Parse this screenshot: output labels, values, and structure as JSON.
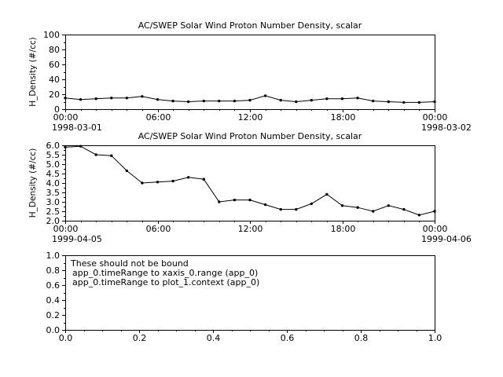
{
  "app": {
    "background": "#ffffff",
    "foreground": "#000000"
  },
  "chart_data": [
    {
      "type": "line",
      "title": "AC/SWEP  Solar Wind Proton Number Density, scalar",
      "ylabel": "H_Density (#/cc)",
      "xlabel": "",
      "ylim": [
        0,
        100
      ],
      "yticks": [
        0,
        20,
        40,
        60,
        80,
        100
      ],
      "ytick_labels": [
        "0",
        "20",
        "40",
        "60",
        "80",
        "100"
      ],
      "yminor_step": 10,
      "xlim": [
        0,
        24
      ],
      "xticks": [
        0,
        6,
        12,
        18,
        24
      ],
      "xtick_labels": [
        "00:00",
        "06:00",
        "12:00",
        "18:00",
        "00:00"
      ],
      "xminor_step": 1,
      "x_start_date": "1998-03-01",
      "x_end_date": "1998-03-02",
      "grid": false,
      "legend": "none",
      "x": [
        0,
        1,
        2,
        3,
        4,
        5,
        6,
        7,
        8,
        9,
        10,
        11,
        12,
        13,
        14,
        15,
        16,
        17,
        18,
        19,
        20,
        21,
        22,
        23,
        24
      ],
      "values": [
        15,
        13,
        14,
        15,
        15,
        17,
        13,
        11,
        10,
        11,
        11,
        11,
        12,
        18,
        12,
        10,
        12,
        14,
        14,
        15,
        11,
        10,
        9,
        9,
        10
      ]
    },
    {
      "type": "line",
      "title": "AC/SWEP  Solar Wind Proton Number Density, scalar",
      "ylabel": "H_Density (#/cc)",
      "xlabel": "",
      "ylim": [
        2.0,
        6.0
      ],
      "yticks": [
        2.0,
        2.5,
        3.0,
        3.5,
        4.0,
        4.5,
        5.0,
        5.5,
        6.0
      ],
      "ytick_labels": [
        "2.0",
        "2.5",
        "3.0",
        "3.5",
        "4.0",
        "4.5",
        "5.0",
        "5.5",
        "6.0"
      ],
      "yminor_step": 0.25,
      "xlim": [
        0,
        24
      ],
      "xticks": [
        0,
        6,
        12,
        18,
        24
      ],
      "xtick_labels": [
        "00:00",
        "06:00",
        "12:00",
        "18:00",
        "00:00"
      ],
      "xminor_step": 1,
      "x_start_date": "1999-04-05",
      "x_end_date": "1999-04-06",
      "grid": false,
      "legend": "none",
      "x": [
        0,
        1,
        2,
        3,
        4,
        5,
        6,
        7,
        8,
        9,
        10,
        11,
        12,
        13,
        14,
        15,
        16,
        17,
        18,
        19,
        20,
        21,
        22,
        23,
        24
      ],
      "values": [
        5.9,
        5.95,
        5.5,
        5.45,
        4.65,
        4.0,
        4.05,
        4.1,
        4.3,
        4.2,
        3.0,
        3.1,
        3.1,
        2.85,
        2.6,
        2.6,
        2.9,
        3.4,
        2.8,
        2.7,
        2.5,
        2.8,
        2.6,
        2.3,
        2.5
      ]
    },
    {
      "type": "line",
      "title": "",
      "ylabel": "",
      "xlabel": "",
      "ylim": [
        0.0,
        1.0
      ],
      "yticks": [
        0.0,
        0.2,
        0.4,
        0.6,
        0.8,
        1.0
      ],
      "ytick_labels": [
        "0.0",
        "0.2",
        "0.4",
        "0.6",
        "0.8",
        "1.0"
      ],
      "yminor_step": 0.1,
      "xlim": [
        0.0,
        1.0
      ],
      "xticks": [
        0.0,
        0.2,
        0.4,
        0.6,
        0.8,
        1.0
      ],
      "xtick_labels": [
        "0.0",
        "0.2",
        "0.4",
        "0.6",
        "0.8",
        "1.0"
      ],
      "xminor_step": 0.05,
      "x_start_date": "",
      "x_end_date": "",
      "grid": false,
      "legend": "none",
      "annotation": [
        "These should not be bound",
        "app_0.timeRange to xaxis_0.range  (app_0)",
        "app_0.timeRange to plot_1.context  (app_0)"
      ],
      "x": [],
      "values": []
    }
  ]
}
